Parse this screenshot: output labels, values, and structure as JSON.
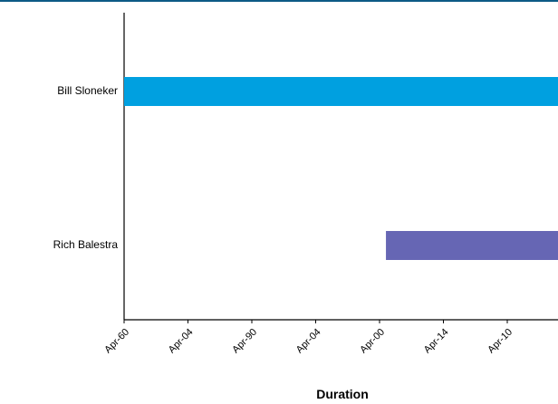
{
  "header": {
    "rule_color": "#0d5a85"
  },
  "chart_data": {
    "type": "bar",
    "orientation": "horizontal-gantt",
    "categories": [
      "Bill Sloneker",
      "Rich Balestra"
    ],
    "series": [
      {
        "values": [
          {
            "category": "Bill Sloneker",
            "start_tick": "Apr-60",
            "start_offset_ticks": 0,
            "end_offset_ticks": 6.8,
            "extends_past_view": true,
            "color": "#00a0e0"
          },
          {
            "category": "Rich Balestra",
            "start_tick": "Apr-00",
            "start_offset_ticks": 4.1,
            "end_offset_ticks": 6.8,
            "extends_past_view": true,
            "color": "#6666b4"
          }
        ]
      }
    ],
    "x_tick_labels": [
      "Apr-60",
      "Apr-04",
      "Apr-90",
      "Apr-04",
      "Apr-00",
      "Apr-14",
      "Apr-10"
    ],
    "xlabel": "Duration",
    "ylabel": "",
    "grid": false,
    "axis_color": "#000000"
  }
}
